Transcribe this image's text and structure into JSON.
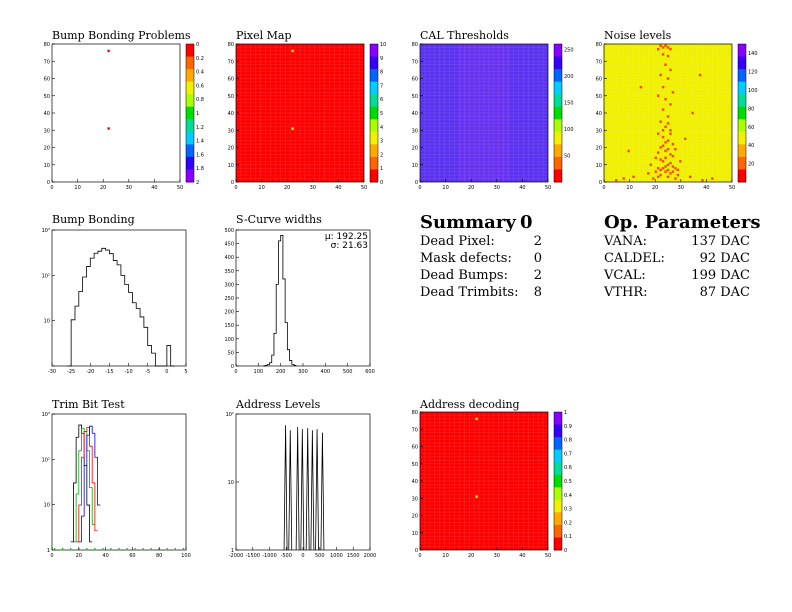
{
  "chart_data": [
    {
      "type": "heatmap",
      "title": "Bump Bonding Problems",
      "xlim": [
        0,
        52
      ],
      "ylim": [
        0,
        80
      ],
      "xticks": [
        "0",
        "10",
        "20",
        "30",
        "40",
        "50"
      ],
      "yticks": [
        "0",
        "10",
        "20",
        "30",
        "40",
        "50",
        "60",
        "70",
        "80"
      ],
      "zlim": [
        0,
        2
      ],
      "zticks": [
        "0",
        "0.2",
        "0.4",
        "0.6",
        "0.8",
        "1",
        "1.2",
        "1.4",
        "1.6",
        "1.8",
        "2"
      ],
      "colorbar_reversed": true,
      "background": "white",
      "points": [
        [
          23,
          76
        ],
        [
          23,
          31
        ]
      ]
    },
    {
      "type": "heatmap",
      "title": "Pixel Map",
      "xlim": [
        0,
        52
      ],
      "ylim": [
        0,
        80
      ],
      "xticks": [
        "0",
        "10",
        "20",
        "30",
        "40",
        "50"
      ],
      "yticks": [
        "0",
        "10",
        "20",
        "30",
        "40",
        "50",
        "60",
        "70",
        "80"
      ],
      "zlim": [
        0,
        10
      ],
      "zticks": [
        "0",
        "1",
        "2",
        "3",
        "4",
        "5",
        "6",
        "7",
        "8",
        "9",
        "10"
      ],
      "fill": "#ff0000",
      "points": [
        [
          23,
          76
        ],
        [
          23,
          31
        ]
      ]
    },
    {
      "type": "heatmap",
      "title": "CAL Thresholds",
      "xlim": [
        0,
        52
      ],
      "ylim": [
        0,
        80
      ],
      "xticks": [
        "0",
        "10",
        "20",
        "30",
        "40",
        "50"
      ],
      "yticks": [
        "0",
        "10",
        "20",
        "30",
        "40",
        "50",
        "60",
        "70",
        "80"
      ],
      "zlim": [
        0,
        260
      ],
      "zticks": [
        "50",
        "100",
        "150",
        "200",
        "250"
      ],
      "fill": "#5a32f0",
      "gradient": "#8033f0"
    },
    {
      "type": "heatmap",
      "title": "Noise levels",
      "xlim": [
        0,
        52
      ],
      "ylim": [
        0,
        80
      ],
      "xticks": [
        "0",
        "10",
        "20",
        "30",
        "40",
        "50"
      ],
      "yticks": [
        "0",
        "10",
        "20",
        "30",
        "40",
        "50",
        "60",
        "70",
        "80"
      ],
      "zlim": [
        0,
        150
      ],
      "zticks": [
        "20",
        "40",
        "60",
        "80",
        "100",
        "120",
        "140"
      ],
      "fill": "#f0f000",
      "hot": [
        [
          24,
          78
        ],
        [
          25,
          79
        ],
        [
          26,
          78
        ],
        [
          27,
          77
        ],
        [
          22,
          77
        ],
        [
          23,
          79
        ],
        [
          24,
          74
        ],
        [
          26,
          73
        ],
        [
          25,
          68
        ],
        [
          27,
          65
        ],
        [
          23,
          62
        ],
        [
          26,
          60
        ],
        [
          24,
          55
        ],
        [
          28,
          52
        ],
        [
          22,
          50
        ],
        [
          25,
          48
        ],
        [
          27,
          45
        ],
        [
          24,
          42
        ],
        [
          26,
          38
        ],
        [
          23,
          35
        ],
        [
          25,
          32
        ],
        [
          27,
          30
        ],
        [
          22,
          28
        ],
        [
          24,
          26
        ],
        [
          26,
          24
        ],
        [
          28,
          22
        ],
        [
          23,
          20
        ],
        [
          25,
          18
        ],
        [
          27,
          16
        ],
        [
          21,
          14
        ],
        [
          24,
          12
        ],
        [
          26,
          10
        ],
        [
          28,
          9
        ],
        [
          22,
          8
        ],
        [
          25,
          6
        ],
        [
          27,
          5
        ],
        [
          23,
          4
        ],
        [
          26,
          3
        ],
        [
          20,
          2
        ],
        [
          29,
          2
        ],
        [
          18,
          5
        ],
        [
          30,
          7
        ],
        [
          12,
          3
        ],
        [
          8,
          2
        ],
        [
          35,
          3
        ],
        [
          40,
          1
        ],
        [
          44,
          2
        ],
        [
          5,
          1
        ],
        [
          19,
          10
        ],
        [
          31,
          12
        ],
        [
          24,
          8
        ],
        [
          25,
          9
        ],
        [
          26,
          7
        ],
        [
          27,
          11
        ],
        [
          23,
          13
        ],
        [
          28,
          15
        ],
        [
          22,
          17
        ],
        [
          29,
          19
        ],
        [
          10,
          18
        ],
        [
          33,
          25
        ],
        [
          36,
          40
        ],
        [
          15,
          55
        ],
        [
          39,
          62
        ],
        [
          24,
          30
        ],
        [
          26,
          34
        ],
        [
          27,
          28
        ],
        [
          25,
          23
        ],
        [
          24,
          21
        ],
        [
          26,
          19
        ],
        [
          25,
          14
        ],
        [
          23,
          7
        ],
        [
          28,
          6
        ],
        [
          22,
          3
        ],
        [
          30,
          4
        ],
        [
          21,
          6
        ],
        [
          29,
          8
        ]
      ]
    },
    {
      "type": "line",
      "title": "Bump Bonding",
      "xlim": [
        -30,
        5
      ],
      "xticks": [
        "-30",
        "-25",
        "-20",
        "-15",
        "-10",
        "-5",
        "0",
        "5"
      ],
      "yticks": [
        "10",
        "10²",
        "10³"
      ],
      "log_y": true,
      "step_x": [
        -26,
        -25,
        -24,
        -23,
        -22,
        -21,
        -20,
        -19,
        -18,
        -17,
        -16,
        -15,
        -14,
        -13,
        -12,
        -11,
        -10,
        -9,
        -8,
        -7,
        -6,
        -5,
        -4,
        -3,
        -2,
        -1,
        0,
        1,
        2
      ],
      "step_y": [
        1,
        12,
        25,
        55,
        120,
        210,
        330,
        430,
        480,
        560,
        510,
        420,
        290,
        230,
        130,
        80,
        52,
        30,
        22,
        14,
        8,
        3,
        2,
        1,
        1,
        1,
        3,
        1,
        1
      ]
    },
    {
      "type": "line",
      "title": "S-Curve widths",
      "xlim": [
        0,
        600
      ],
      "ylim": [
        0,
        500
      ],
      "xticks": [
        "0",
        "100",
        "200",
        "300",
        "400",
        "500",
        "600"
      ],
      "yticks": [
        "0",
        "50",
        "100",
        "150",
        "200",
        "250",
        "300",
        "350",
        "400",
        "450",
        "500"
      ],
      "stats": [
        "μ: 192.25",
        "σ: 21.63"
      ],
      "step_x": [
        120,
        130,
        140,
        150,
        160,
        170,
        180,
        190,
        200,
        210,
        220,
        230,
        240,
        250,
        260,
        270
      ],
      "step_y": [
        0,
        2,
        5,
        12,
        40,
        120,
        300,
        460,
        480,
        320,
        160,
        60,
        20,
        6,
        2,
        0
      ]
    },
    {
      "type": "line",
      "title": "Trim Bit Test",
      "xlim": [
        0,
        100
      ],
      "xticks": [
        "0",
        "20",
        "40",
        "60",
        "80",
        "100"
      ],
      "yticks": [
        "1",
        "10",
        "10²",
        "10³"
      ],
      "log_y": true,
      "series": [
        {
          "color": "#000000",
          "x": [
            14,
            16,
            18,
            20,
            22,
            24,
            26,
            28,
            30
          ],
          "y": [
            1,
            40,
            700,
            1500,
            900,
            120,
            10,
            1,
            1
          ]
        },
        {
          "color": "#00aa00",
          "x": [
            16,
            18,
            20,
            22,
            24,
            26,
            28,
            30,
            32
          ],
          "y": [
            1,
            20,
            300,
            1200,
            1000,
            300,
            30,
            3,
            1
          ]
        },
        {
          "color": "#ff0000",
          "x": [
            18,
            20,
            22,
            24,
            26,
            28,
            30,
            32,
            34
          ],
          "y": [
            1,
            10,
            200,
            1000,
            1300,
            400,
            40,
            2,
            1
          ]
        },
        {
          "color": "#0000ff",
          "x": [
            20,
            22,
            24,
            26,
            28,
            30,
            32,
            34,
            36
          ],
          "y": [
            1,
            5,
            120,
            800,
            1400,
            900,
            200,
            10,
            1
          ]
        }
      ]
    },
    {
      "type": "line",
      "title": "Address Levels",
      "xlim": [
        -2000,
        2000
      ],
      "xticks": [
        "-2000",
        "-1500",
        "-1000",
        "-500",
        "0",
        "500",
        "1000",
        "1500",
        "2000"
      ],
      "yticks": [
        "1",
        "10",
        "10²"
      ],
      "log_y": true,
      "peaks": [
        -520,
        -380,
        -160,
        -20,
        140,
        280,
        420,
        580
      ],
      "peak_heights": [
        230,
        180,
        210,
        190,
        200,
        180,
        190,
        160
      ]
    },
    {
      "type": "heatmap",
      "title": "Address decoding",
      "xlim": [
        0,
        52
      ],
      "ylim": [
        0,
        80
      ],
      "xticks": [
        "0",
        "10",
        "20",
        "30",
        "40",
        "50"
      ],
      "yticks": [
        "0",
        "10",
        "20",
        "30",
        "40",
        "50",
        "60",
        "70",
        "80"
      ],
      "zlim": [
        0,
        1
      ],
      "zticks": [
        "0",
        "0.1",
        "0.2",
        "0.3",
        "0.4",
        "0.5",
        "0.6",
        "0.7",
        "0.8",
        "0.9",
        "1"
      ],
      "fill": "#ff0000",
      "points": [
        [
          23,
          76
        ],
        [
          23,
          31
        ]
      ]
    }
  ],
  "summary": {
    "title": "Summary",
    "title_value": "0",
    "rows": [
      {
        "label": "Dead Pixel:",
        "value": "2"
      },
      {
        "label": "Mask defects:",
        "value": "0"
      },
      {
        "label": "Dead Bumps:",
        "value": "2"
      },
      {
        "label": "Dead Trimbits:",
        "value": "8"
      }
    ]
  },
  "op_parameters": {
    "title": "Op. Parameters",
    "rows": [
      {
        "label": "VANA:",
        "value": "137 DAC"
      },
      {
        "label": "CALDEL:",
        "value": "92 DAC"
      },
      {
        "label": "VCAL:",
        "value": "199 DAC"
      },
      {
        "label": "VTHR:",
        "value": "87 DAC"
      }
    ]
  }
}
